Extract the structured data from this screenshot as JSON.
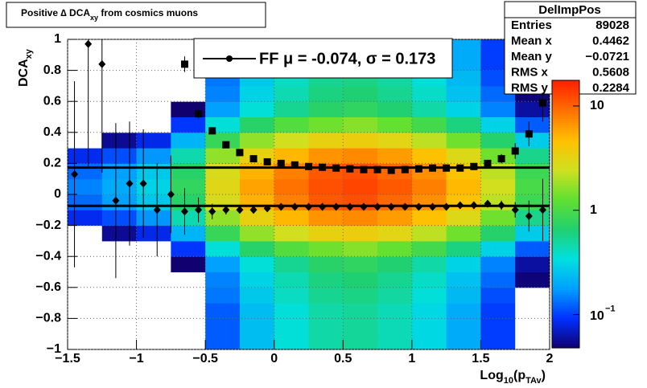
{
  "chart_data": {
    "type": "hist2d",
    "title": {
      "text": "Positive ∆ DCA",
      "sub": "xy",
      "rest": " from cosmics muons"
    },
    "x_label": {
      "a": "Log",
      "sub1": "10",
      "b": "(p",
      "sub2": "TAv",
      "c": ")"
    },
    "y_label": {
      "text": "DCA",
      "sub": "xy"
    },
    "xlim": [
      -1.5,
      2
    ],
    "ylim": [
      -1,
      1
    ],
    "xticks": [
      {
        "value": -1.5,
        "label": "−1.5"
      },
      {
        "value": -1,
        "label": "−1"
      },
      {
        "value": -0.5,
        "label": "−0.5"
      },
      0,
      0.5,
      1,
      1.5,
      2
    ],
    "yticks": [
      {
        "value": -1,
        "label": "−1"
      },
      {
        "value": -0.8,
        "label": "−0.8"
      },
      {
        "value": -0.6,
        "label": "−0.6"
      },
      {
        "value": -0.4,
        "label": "−0.4"
      },
      {
        "value": -0.2,
        "label": "−0.2"
      },
      0,
      0.2,
      0.4,
      0.6,
      0.8,
      1
    ],
    "grid": true,
    "zlog": true,
    "zlim": [
      0.048,
      17.6
    ],
    "zticks": [
      {
        "value": 0.1,
        "label": "10",
        "exponent": "−1"
      },
      1,
      10
    ],
    "palette": [
      "#100070",
      "#0030ff",
      "#00a0ff",
      "#00e0e0",
      "#20d070",
      "#60e030",
      "#d0e020",
      "#ffc000",
      "#ff7000",
      "#ff2000"
    ],
    "xbins": [
      -1.5,
      -1.25,
      -1,
      -0.75,
      -0.5,
      -0.25,
      0,
      0.25,
      0.5,
      0.75,
      1,
      1.25,
      1.5,
      1.75,
      2
    ],
    "ybins": [
      -1,
      -0.9,
      -0.8,
      -0.7,
      -0.6,
      -0.5,
      -0.4,
      -0.3,
      -0.2,
      -0.1,
      0,
      0.1,
      0.2,
      0.3,
      0.4,
      0.5,
      0.6,
      0.7,
      0.8,
      0.9,
      1
    ],
    "z": [
      [
        0.006,
        0.008,
        0.012,
        0.032,
        0.12,
        0.24,
        0.36,
        0.48,
        0.52,
        0.44,
        0.32,
        0.2,
        0.1,
        0.04
      ],
      [
        0.006,
        0.008,
        0.012,
        0.032,
        0.12,
        0.24,
        0.36,
        0.48,
        0.52,
        0.44,
        0.32,
        0.2,
        0.1,
        0.04
      ],
      [
        0.006,
        0.008,
        0.012,
        0.032,
        0.12,
        0.24,
        0.36,
        0.48,
        0.52,
        0.44,
        0.32,
        0.2,
        0.1,
        0.04
      ],
      [
        0.007,
        0.009,
        0.014,
        0.036,
        0.14,
        0.27,
        0.41,
        0.54,
        0.59,
        0.5,
        0.36,
        0.23,
        0.11,
        0.045
      ],
      [
        0.008,
        0.01,
        0.015,
        0.04,
        0.15,
        0.3,
        0.45,
        0.6,
        0.65,
        0.55,
        0.4,
        0.25,
        0.13,
        0.05
      ],
      [
        0.009,
        0.012,
        0.018,
        0.048,
        0.18,
        0.36,
        0.54,
        0.72,
        0.78,
        0.66,
        0.48,
        0.3,
        0.15,
        0.06
      ],
      [
        0.018,
        0.024,
        0.036,
        0.096,
        0.36,
        0.72,
        1.1,
        1.4,
        1.6,
        1.3,
        0.96,
        0.6,
        0.3,
        0.12
      ],
      [
        0.042,
        0.056,
        0.084,
        0.22,
        0.84,
        1.7,
        2.5,
        3.4,
        3.6,
        3.1,
        2.2,
        1.4,
        0.7,
        0.28
      ],
      [
        0.086,
        0.11,
        0.17,
        0.46,
        1.7,
        3.4,
        5.1,
        6.8,
        7.4,
        6.3,
        4.6,
        2.9,
        1.4,
        0.57
      ],
      [
        0.13,
        0.18,
        0.27,
        0.71,
        2.7,
        5.3,
        8,
        11,
        12,
        9.8,
        7.1,
        4.5,
        2.2,
        0.89
      ],
      [
        0.15,
        0.2,
        0.3,
        0.8,
        3,
        6,
        9,
        12,
        13,
        11,
        8,
        5,
        2.5,
        1
      ],
      [
        0.13,
        0.18,
        0.27,
        0.71,
        2.7,
        5.3,
        8,
        11,
        12,
        9.8,
        7.1,
        4.5,
        2.2,
        0.89
      ],
      [
        0.086,
        0.11,
        0.17,
        0.46,
        1.7,
        3.4,
        5.1,
        6.8,
        7.4,
        6.3,
        4.6,
        2.9,
        1.4,
        0.57
      ],
      [
        0.042,
        0.056,
        0.084,
        0.22,
        0.84,
        1.7,
        2.5,
        3.4,
        3.6,
        3.1,
        2.2,
        1.4,
        0.7,
        0.28
      ],
      [
        0.018,
        0.024,
        0.036,
        0.096,
        0.36,
        0.72,
        1.1,
        1.4,
        1.6,
        1.3,
        0.96,
        0.6,
        0.3,
        0.12
      ],
      [
        0.009,
        0.012,
        0.018,
        0.048,
        0.18,
        0.36,
        0.54,
        0.72,
        0.78,
        0.66,
        0.48,
        0.3,
        0.15,
        0.06
      ],
      [
        0.008,
        0.01,
        0.015,
        0.04,
        0.15,
        0.3,
        0.45,
        0.6,
        0.65,
        0.55,
        0.4,
        0.25,
        0.13,
        0.05
      ],
      [
        0.007,
        0.009,
        0.014,
        0.036,
        0.14,
        0.27,
        0.41,
        0.54,
        0.59,
        0.5,
        0.36,
        0.23,
        0.11,
        0.045
      ],
      [
        0.006,
        0.008,
        0.012,
        0.032,
        0.12,
        0.24,
        0.36,
        0.48,
        0.52,
        0.44,
        0.32,
        0.2,
        0.1,
        0.04
      ],
      [
        0.006,
        0.008,
        0.012,
        0.032,
        0.12,
        0.24,
        0.36,
        0.48,
        0.52,
        0.44,
        0.32,
        0.2,
        0.1,
        0.04
      ]
    ],
    "series": [
      {
        "marker": "square",
        "color": "#000000",
        "x": [
          -0.65,
          -0.55,
          -0.45,
          -0.35,
          -0.25,
          -0.15,
          -0.05,
          0.05,
          0.15,
          0.25,
          0.35,
          0.45,
          0.55,
          0.65,
          0.75,
          0.85,
          0.95,
          1.05,
          1.15,
          1.25,
          1.35,
          1.45,
          1.55,
          1.65,
          1.75,
          1.85,
          1.95
        ],
        "values": [
          0.84,
          0.52,
          0.41,
          0.32,
          0.27,
          0.23,
          0.21,
          0.2,
          0.19,
          0.18,
          0.175,
          0.17,
          0.165,
          0.16,
          0.16,
          0.155,
          0.16,
          0.165,
          0.17,
          0.17,
          0.17,
          0.18,
          0.2,
          0.23,
          0.28,
          0.39,
          0.59
        ],
        "errors": [
          0.05,
          0.03,
          0.02,
          0.015,
          0.01,
          0.01,
          0.01,
          0.01,
          0.01,
          0.01,
          0.01,
          0.01,
          0.01,
          0.01,
          0.01,
          0.01,
          0.01,
          0.01,
          0.01,
          0.01,
          0.01,
          0.015,
          0.02,
          0.03,
          0.05,
          0.08,
          0.12
        ]
      },
      {
        "marker": "circle",
        "color": "#000000",
        "x": [
          -1.45,
          -1.35,
          -1.25,
          -1.15,
          -1.05,
          -0.95,
          -0.85,
          -0.75,
          -0.65,
          -0.55,
          -0.45,
          -0.35,
          -0.25,
          -0.15,
          -0.05,
          0.05,
          0.15,
          0.25,
          0.35,
          0.45,
          0.55,
          0.65,
          0.75,
          0.85,
          0.95,
          1.05,
          1.15,
          1.25,
          1.35,
          1.45,
          1.55,
          1.65,
          1.75,
          1.85,
          1.95
        ],
        "values": [
          0.13,
          0.97,
          0.84,
          -0.04,
          0.07,
          0.07,
          -0.1,
          0,
          -0.11,
          -0.1,
          -0.11,
          -0.1,
          -0.1,
          -0.1,
          -0.09,
          -0.08,
          -0.08,
          -0.08,
          -0.08,
          -0.08,
          -0.08,
          -0.08,
          -0.08,
          -0.08,
          -0.08,
          -0.08,
          -0.08,
          -0.08,
          -0.07,
          -0.07,
          -0.06,
          -0.07,
          -0.1,
          -0.14,
          -0.1
        ],
        "errors": [
          0.6,
          0.8,
          0.7,
          0.5,
          0.4,
          0.35,
          0.3,
          0.25,
          0.15,
          0.08,
          0.05,
          0.03,
          0.02,
          0.015,
          0.01,
          0.01,
          0.01,
          0.01,
          0.01,
          0.01,
          0.01,
          0.01,
          0.01,
          0.01,
          0.01,
          0.01,
          0.01,
          0.01,
          0.01,
          0.015,
          0.02,
          0.03,
          0.05,
          0.1,
          0.2
        ]
      }
    ],
    "fit": {
      "mu": -0.074,
      "sigma": 0.173
    },
    "legend": "FF μ = -0.074, σ =   0.173",
    "stats": {
      "title": "DelImpPos",
      "rows": [
        [
          "Entries",
          "89028"
        ],
        [
          "Mean x",
          "0.4462"
        ],
        [
          "Mean y",
          "−0.0721"
        ],
        [
          "RMS x",
          "0.5608"
        ],
        [
          "RMS y",
          "0.2284"
        ]
      ]
    }
  }
}
